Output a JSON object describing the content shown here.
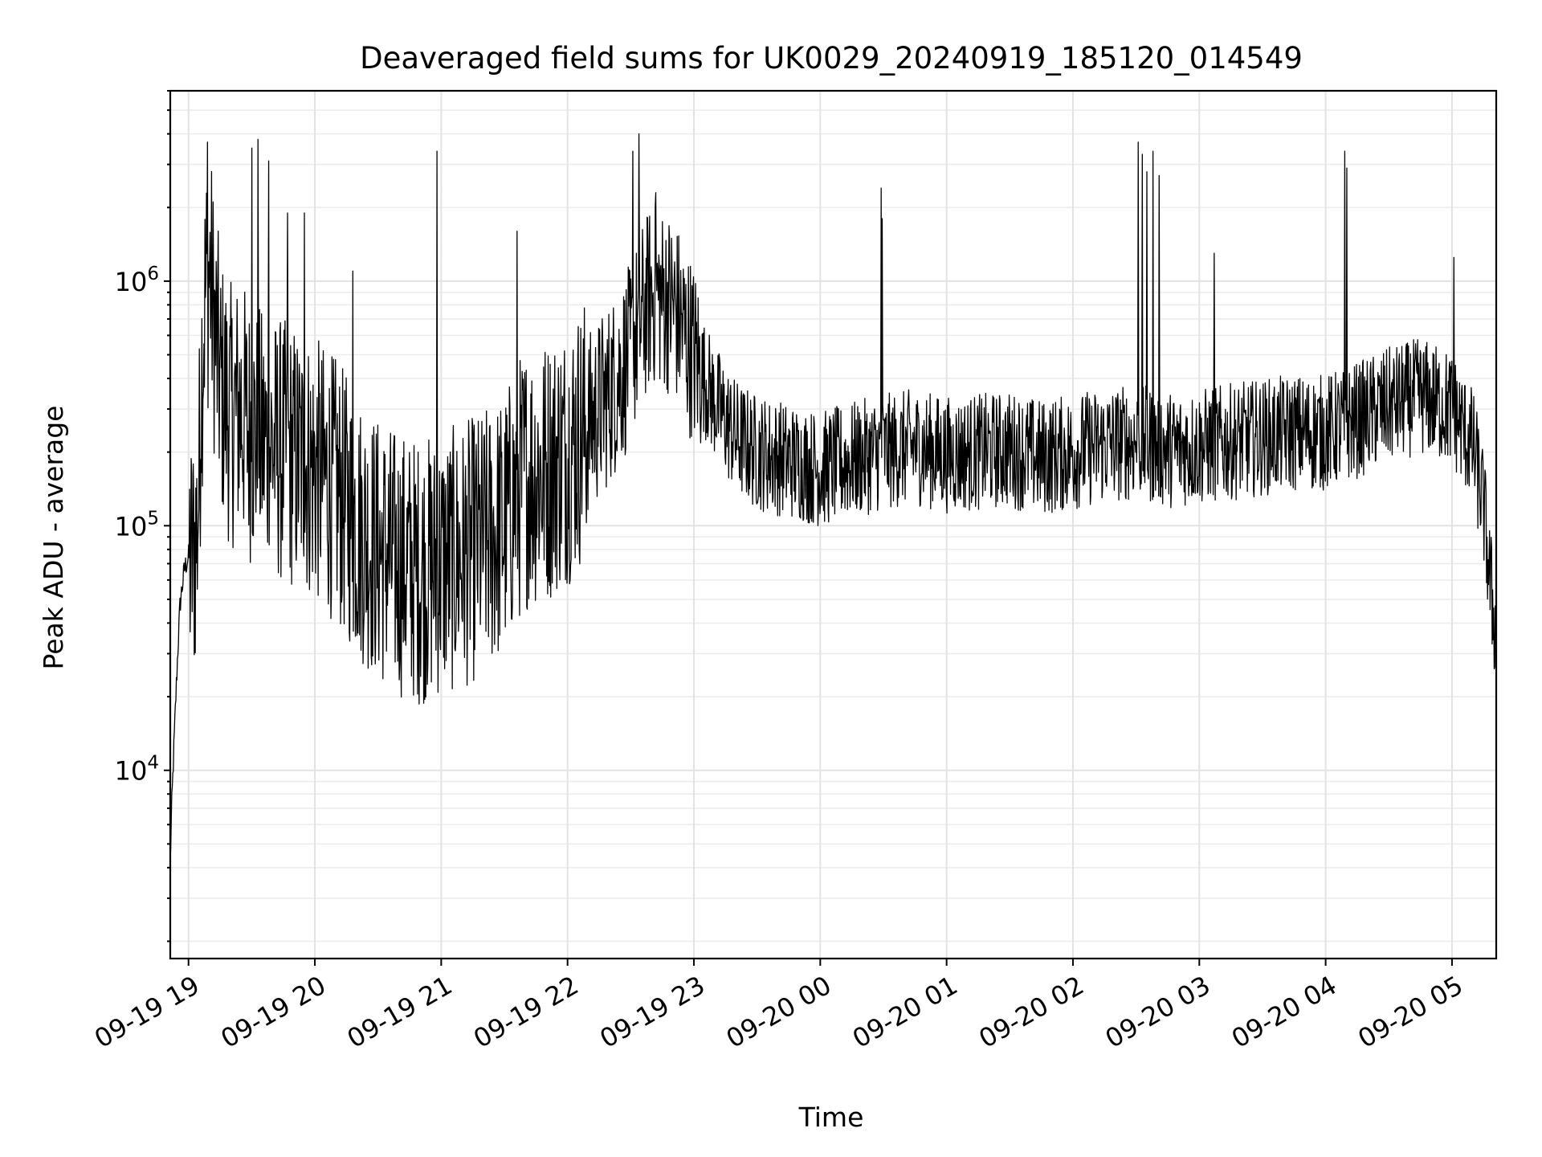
{
  "chart_data": {
    "type": "line",
    "title": "Deaveraged field sums for UK0029_20240919_185120_014549",
    "xlabel": "Time",
    "ylabel": "Peak ADU - average",
    "yscale": "log",
    "ylim": [
      1700,
      6000000
    ],
    "xlim": [
      "2024-09-19T18:51:20",
      "2024-09-20T05:21:00"
    ],
    "grid": true,
    "grid_minor": true,
    "x_ticks": [
      {
        "time": "2024-09-19T19:00:00",
        "label": "09-19 19"
      },
      {
        "time": "2024-09-19T20:00:00",
        "label": "09-19 20"
      },
      {
        "time": "2024-09-19T21:00:00",
        "label": "09-19 21"
      },
      {
        "time": "2024-09-19T22:00:00",
        "label": "09-19 22"
      },
      {
        "time": "2024-09-19T23:00:00",
        "label": "09-19 23"
      },
      {
        "time": "2024-09-20T00:00:00",
        "label": "09-20 00"
      },
      {
        "time": "2024-09-20T01:00:00",
        "label": "09-20 01"
      },
      {
        "time": "2024-09-20T02:00:00",
        "label": "09-20 02"
      },
      {
        "time": "2024-09-20T03:00:00",
        "label": "09-20 03"
      },
      {
        "time": "2024-09-20T04:00:00",
        "label": "09-20 04"
      },
      {
        "time": "2024-09-20T05:00:00",
        "label": "09-20 05"
      }
    ],
    "y_ticks": [
      {
        "value": 10000,
        "base": "10",
        "exp": "4"
      },
      {
        "value": 100000,
        "base": "10",
        "exp": "5"
      },
      {
        "value": 1000000,
        "base": "10",
        "exp": "6"
      }
    ],
    "line_color": "#000000",
    "series": [
      {
        "x": [
          "2024-09-19T18:51:20",
          "2024-09-19T18:52:00",
          "2024-09-19T18:53:00",
          "2024-09-19T18:54:00",
          "2024-09-19T18:55:00",
          "2024-09-19T18:56:00",
          "2024-09-19T18:58:00",
          "2024-09-19T19:00:00",
          "2024-09-19T19:02:00",
          "2024-09-19T19:04:00",
          "2024-09-19T19:05:00",
          "2024-09-19T19:06:00",
          "2024-09-19T19:08:00",
          "2024-09-19T19:10:00",
          "2024-09-19T19:12:00",
          "2024-09-19T19:15:00",
          "2024-09-19T19:18:00",
          "2024-09-19T19:20:00",
          "2024-09-19T19:25:00",
          "2024-09-19T19:27:00",
          "2024-09-19T19:30:00",
          "2024-09-19T19:35:00",
          "2024-09-19T19:40:00",
          "2024-09-19T19:45:00",
          "2024-09-19T19:50:00",
          "2024-09-19T19:55:00",
          "2024-09-19T20:00:00",
          "2024-09-19T20:10:00",
          "2024-09-19T20:20:00",
          "2024-09-19T20:30:00",
          "2024-09-19T20:40:00",
          "2024-09-19T20:50:00",
          "2024-09-19T21:00:00",
          "2024-09-19T21:10:00",
          "2024-09-19T21:20:00",
          "2024-09-19T21:30:00",
          "2024-09-19T21:35:00",
          "2024-09-19T21:40:00",
          "2024-09-19T21:50:00",
          "2024-09-19T22:00:00",
          "2024-09-19T22:10:00",
          "2024-09-19T22:20:00",
          "2024-09-19T22:30:00",
          "2024-09-19T22:35:00",
          "2024-09-19T22:40:00",
          "2024-09-19T22:50:00",
          "2024-09-19T23:00:00",
          "2024-09-19T23:10:00",
          "2024-09-19T23:20:00",
          "2024-09-19T23:30:00",
          "2024-09-19T23:40:00",
          "2024-09-19T23:50:00",
          "2024-09-20T00:00:00",
          "2024-09-20T00:15:00",
          "2024-09-20T00:30:00",
          "2024-09-20T00:45:00",
          "2024-09-20T01:00:00",
          "2024-09-20T01:15:00",
          "2024-09-20T01:30:00",
          "2024-09-20T01:45:00",
          "2024-09-20T02:00:00",
          "2024-09-20T02:15:00",
          "2024-09-20T02:30:00",
          "2024-09-20T02:45:00",
          "2024-09-20T03:00:00",
          "2024-09-20T03:15:00",
          "2024-09-20T03:30:00",
          "2024-09-20T03:45:00",
          "2024-09-20T04:00:00",
          "2024-09-20T04:15:00",
          "2024-09-20T04:30:00",
          "2024-09-20T04:45:00",
          "2024-09-20T05:00:00",
          "2024-09-20T05:10:00",
          "2024-09-20T05:15:00",
          "2024-09-20T05:18:00",
          "2024-09-20T05:21:00"
        ],
        "y": [
          4200,
          7000,
          12000,
          20000,
          32000,
          48000,
          66000,
          75000,
          72000,
          95000,
          150000,
          400000,
          900000,
          1100000,
          700000,
          380000,
          320000,
          280000,
          300000,
          270000,
          240000,
          220000,
          210000,
          200000,
          190000,
          180000,
          170000,
          140000,
          100000,
          80000,
          70000,
          65000,
          70000,
          75000,
          85000,
          100000,
          130000,
          160000,
          170000,
          200000,
          260000,
          350000,
          500000,
          700000,
          900000,
          800000,
          500000,
          320000,
          230000,
          200000,
          190000,
          180000,
          170000,
          185000,
          200000,
          210000,
          195000,
          200000,
          205000,
          190000,
          200000,
          215000,
          220000,
          205000,
          210000,
          220000,
          230000,
          240000,
          240000,
          270000,
          310000,
          340000,
          300000,
          210000,
          120000,
          60000,
          35000
        ]
      }
    ],
    "spikes": [
      {
        "x": "2024-09-19T19:09:00",
        "y": 3700000
      },
      {
        "x": "2024-09-19T19:30:00",
        "y": 3500000
      },
      {
        "x": "2024-09-19T19:33:00",
        "y": 3800000
      },
      {
        "x": "2024-09-19T19:38:00",
        "y": 3100000
      },
      {
        "x": "2024-09-19T19:47:00",
        "y": 1900000
      },
      {
        "x": "2024-09-19T19:55:00",
        "y": 1900000
      },
      {
        "x": "2024-09-19T20:18:00",
        "y": 1100000
      },
      {
        "x": "2024-09-19T20:58:00",
        "y": 3400000
      },
      {
        "x": "2024-09-19T21:36:00",
        "y": 1600000
      },
      {
        "x": "2024-09-19T22:31:00",
        "y": 3400000
      },
      {
        "x": "2024-09-19T22:34:00",
        "y": 4000000
      },
      {
        "x": "2024-09-19T22:42:00",
        "y": 2300000
      },
      {
        "x": "2024-09-20T00:29:00",
        "y": 2400000
      },
      {
        "x": "2024-09-20T00:29:30",
        "y": 1800000
      },
      {
        "x": "2024-09-20T02:31:00",
        "y": 3700000
      },
      {
        "x": "2024-09-20T02:33:00",
        "y": 3300000
      },
      {
        "x": "2024-09-20T02:35:00",
        "y": 2800000
      },
      {
        "x": "2024-09-20T02:38:00",
        "y": 3400000
      },
      {
        "x": "2024-09-20T02:41:00",
        "y": 2700000
      },
      {
        "x": "2024-09-20T03:07:00",
        "y": 1300000
      },
      {
        "x": "2024-09-20T04:09:00",
        "y": 3400000
      },
      {
        "x": "2024-09-20T04:10:00",
        "y": 2900000
      },
      {
        "x": "2024-09-20T05:01:00",
        "y": 1250000
      }
    ]
  }
}
